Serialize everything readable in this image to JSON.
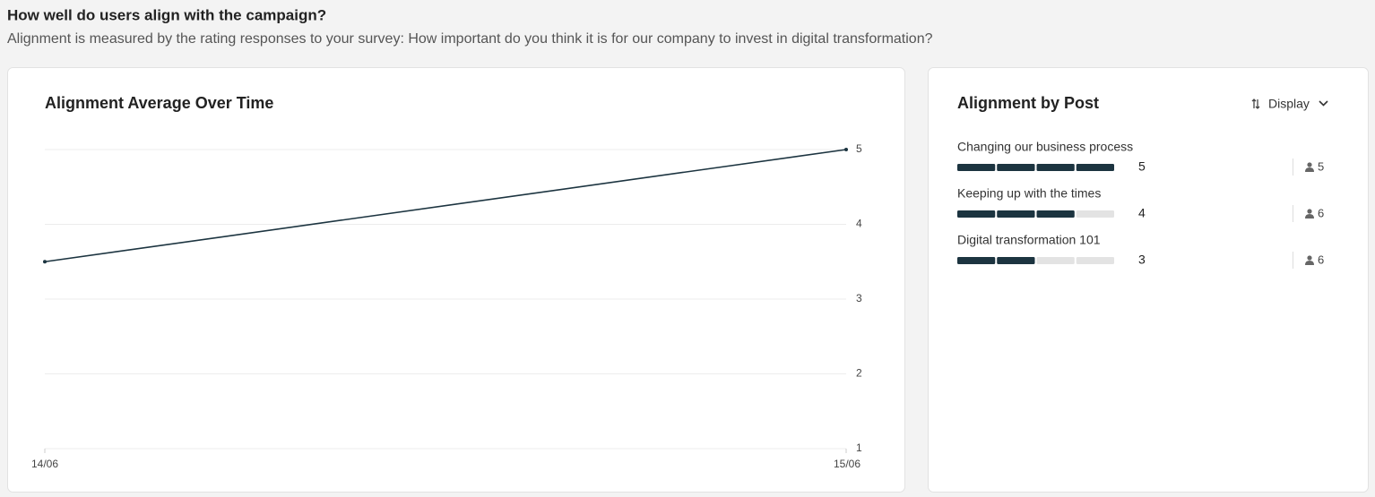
{
  "header": {
    "title": "How well do users align with the campaign?",
    "subtitle": "Alignment is measured by the rating responses to your survey: How important do you think it is for our company to invest in digital transformation?"
  },
  "chart_data": {
    "type": "line",
    "title": "Alignment Average Over Time",
    "categories": [
      "14/06",
      "15/06"
    ],
    "values": [
      3.5,
      5
    ],
    "color": "#1c3440",
    "ylim": [
      1,
      5
    ],
    "yticks": [
      1,
      2,
      3,
      4,
      5
    ],
    "grid": true
  },
  "posts": {
    "title": "Alignment by Post",
    "display_button": "Display",
    "items": [
      {
        "name": "Changing our business process",
        "rating": 5,
        "respondents": 5
      },
      {
        "name": "Keeping up with the times",
        "rating": 4,
        "respondents": 6
      },
      {
        "name": "Digital transformation 101",
        "rating": 3,
        "respondents": 6
      }
    ]
  }
}
